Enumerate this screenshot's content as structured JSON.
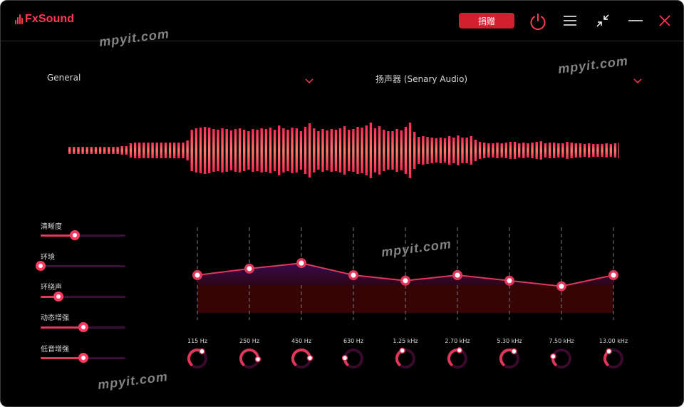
{
  "app": {
    "title": "FxSound",
    "donate_label": "捐赠",
    "watermark": "mpyit.com"
  },
  "preset": {
    "selected": "General"
  },
  "output": {
    "selected": "扬声器 (Senary Audio)"
  },
  "icons": {
    "power": "power-icon",
    "menu": "menu-icon",
    "minimize_view": "collapse-arrows-icon",
    "minimize_window": "minimize-icon",
    "close": "close-icon",
    "dropdown": "chevron-down-icon"
  },
  "colors": {
    "brand_red": "#ff3b52",
    "donate_red": "#d32030",
    "eq_line": "#e0365a",
    "eq_fill_top": "#3a0a52",
    "eq_fill_bottom": "#3a0505",
    "slider_track": "#3c0f3a"
  },
  "effects": [
    {
      "label": "清晰度",
      "value": 0.4
    },
    {
      "label": "环境",
      "value": 0.0
    },
    {
      "label": "环绕声",
      "value": 0.21
    },
    {
      "label": "动态增强",
      "value": 0.5
    },
    {
      "label": "低音增强",
      "value": 0.5
    }
  ],
  "equalizer": {
    "bands": [
      {
        "freq": "115 Hz",
        "level": 0.49
      },
      {
        "freq": "250 Hz",
        "level": 0.56
      },
      {
        "freq": "450 Hz",
        "level": 0.62
      },
      {
        "freq": "630 Hz",
        "level": 0.49
      },
      {
        "freq": "1.25 kHz",
        "level": 0.43
      },
      {
        "freq": "2.70 kHz",
        "level": 0.49
      },
      {
        "freq": "5.30 kHz",
        "level": 0.43
      },
      {
        "freq": "7.50 kHz",
        "level": 0.37
      },
      {
        "freq": "13.00 kHz",
        "level": 0.49
      }
    ],
    "knob_levels": [
      0.62,
      0.85,
      0.82,
      0.18,
      0.42,
      0.55,
      0.62,
      0.22,
      0.38
    ]
  },
  "visualizer": {
    "levels": [
      10,
      10,
      10,
      10,
      10,
      10,
      10,
      10,
      10,
      10,
      10,
      10,
      12,
      12,
      20,
      22,
      22,
      22,
      22,
      22,
      22,
      22,
      22,
      22,
      22,
      22,
      22,
      28,
      58,
      62,
      64,
      66,
      64,
      60,
      58,
      62,
      60,
      56,
      60,
      62,
      58,
      54,
      60,
      58,
      62,
      60,
      64,
      58,
      70,
      62,
      58,
      64,
      62,
      54,
      66,
      76,
      62,
      54,
      60,
      56,
      60,
      58,
      62,
      68,
      58,
      60,
      66,
      64,
      70,
      78,
      62,
      68,
      58,
      54,
      54,
      60,
      56,
      66,
      78,
      52,
      38,
      40,
      38,
      36,
      34,
      36,
      34,
      40,
      36,
      42,
      36,
      36,
      40,
      30,
      24,
      22,
      20,
      20,
      22,
      20,
      22,
      24,
      24,
      20,
      22,
      20,
      22,
      24,
      26,
      20,
      22,
      22,
      20,
      20,
      24,
      22,
      20,
      20,
      18,
      20,
      18,
      18,
      18,
      20,
      18,
      20,
      22
    ]
  }
}
